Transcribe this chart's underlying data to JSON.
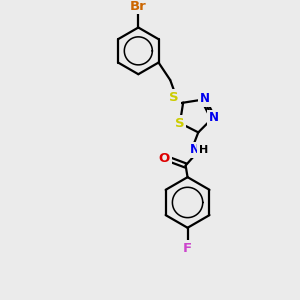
{
  "bg_color": "#ebebeb",
  "bond_color": "#000000",
  "bond_lw": 1.6,
  "font_size": 8.5,
  "atom_colors": {
    "Br": "#cc6600",
    "S": "#cccc00",
    "N": "#0000ee",
    "O": "#dd0000",
    "F": "#cc44cc",
    "C": "#000000"
  },
  "figsize": [
    3.0,
    3.0
  ],
  "dpi": 100
}
